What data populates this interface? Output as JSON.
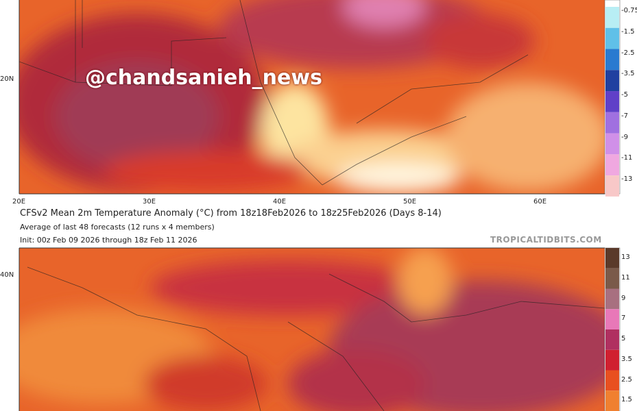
{
  "watermark": "@chandsanieh_news",
  "top_map": {
    "lat_labels": [
      "20N"
    ],
    "lon_labels": [
      "20E",
      "30E",
      "40E",
      "50E",
      "60E"
    ],
    "colorbar_labels": [
      "-0.75",
      "-1.5",
      "-2.5",
      "-3.5",
      "-5",
      "-7",
      "-9",
      "-11",
      "-13"
    ]
  },
  "header": {
    "title": "CFSv2 Mean 2m Temperature Anomaly (°C) from 18z18Feb2026 to 18z25Feb2026 (Days 8-14)",
    "subtitle": "Average of last 48 forecasts (12 runs x 4 members)",
    "init": "Init: 00z Feb 09 2026 through 18z Feb 11 2026",
    "site": "TROPICALTIDBITS.COM"
  },
  "bottom_map": {
    "lat_labels": [
      "40N"
    ],
    "colorbar_labels": [
      "13",
      "11",
      "9",
      "7",
      "5",
      "3.5",
      "2.5",
      "1.5"
    ]
  }
}
